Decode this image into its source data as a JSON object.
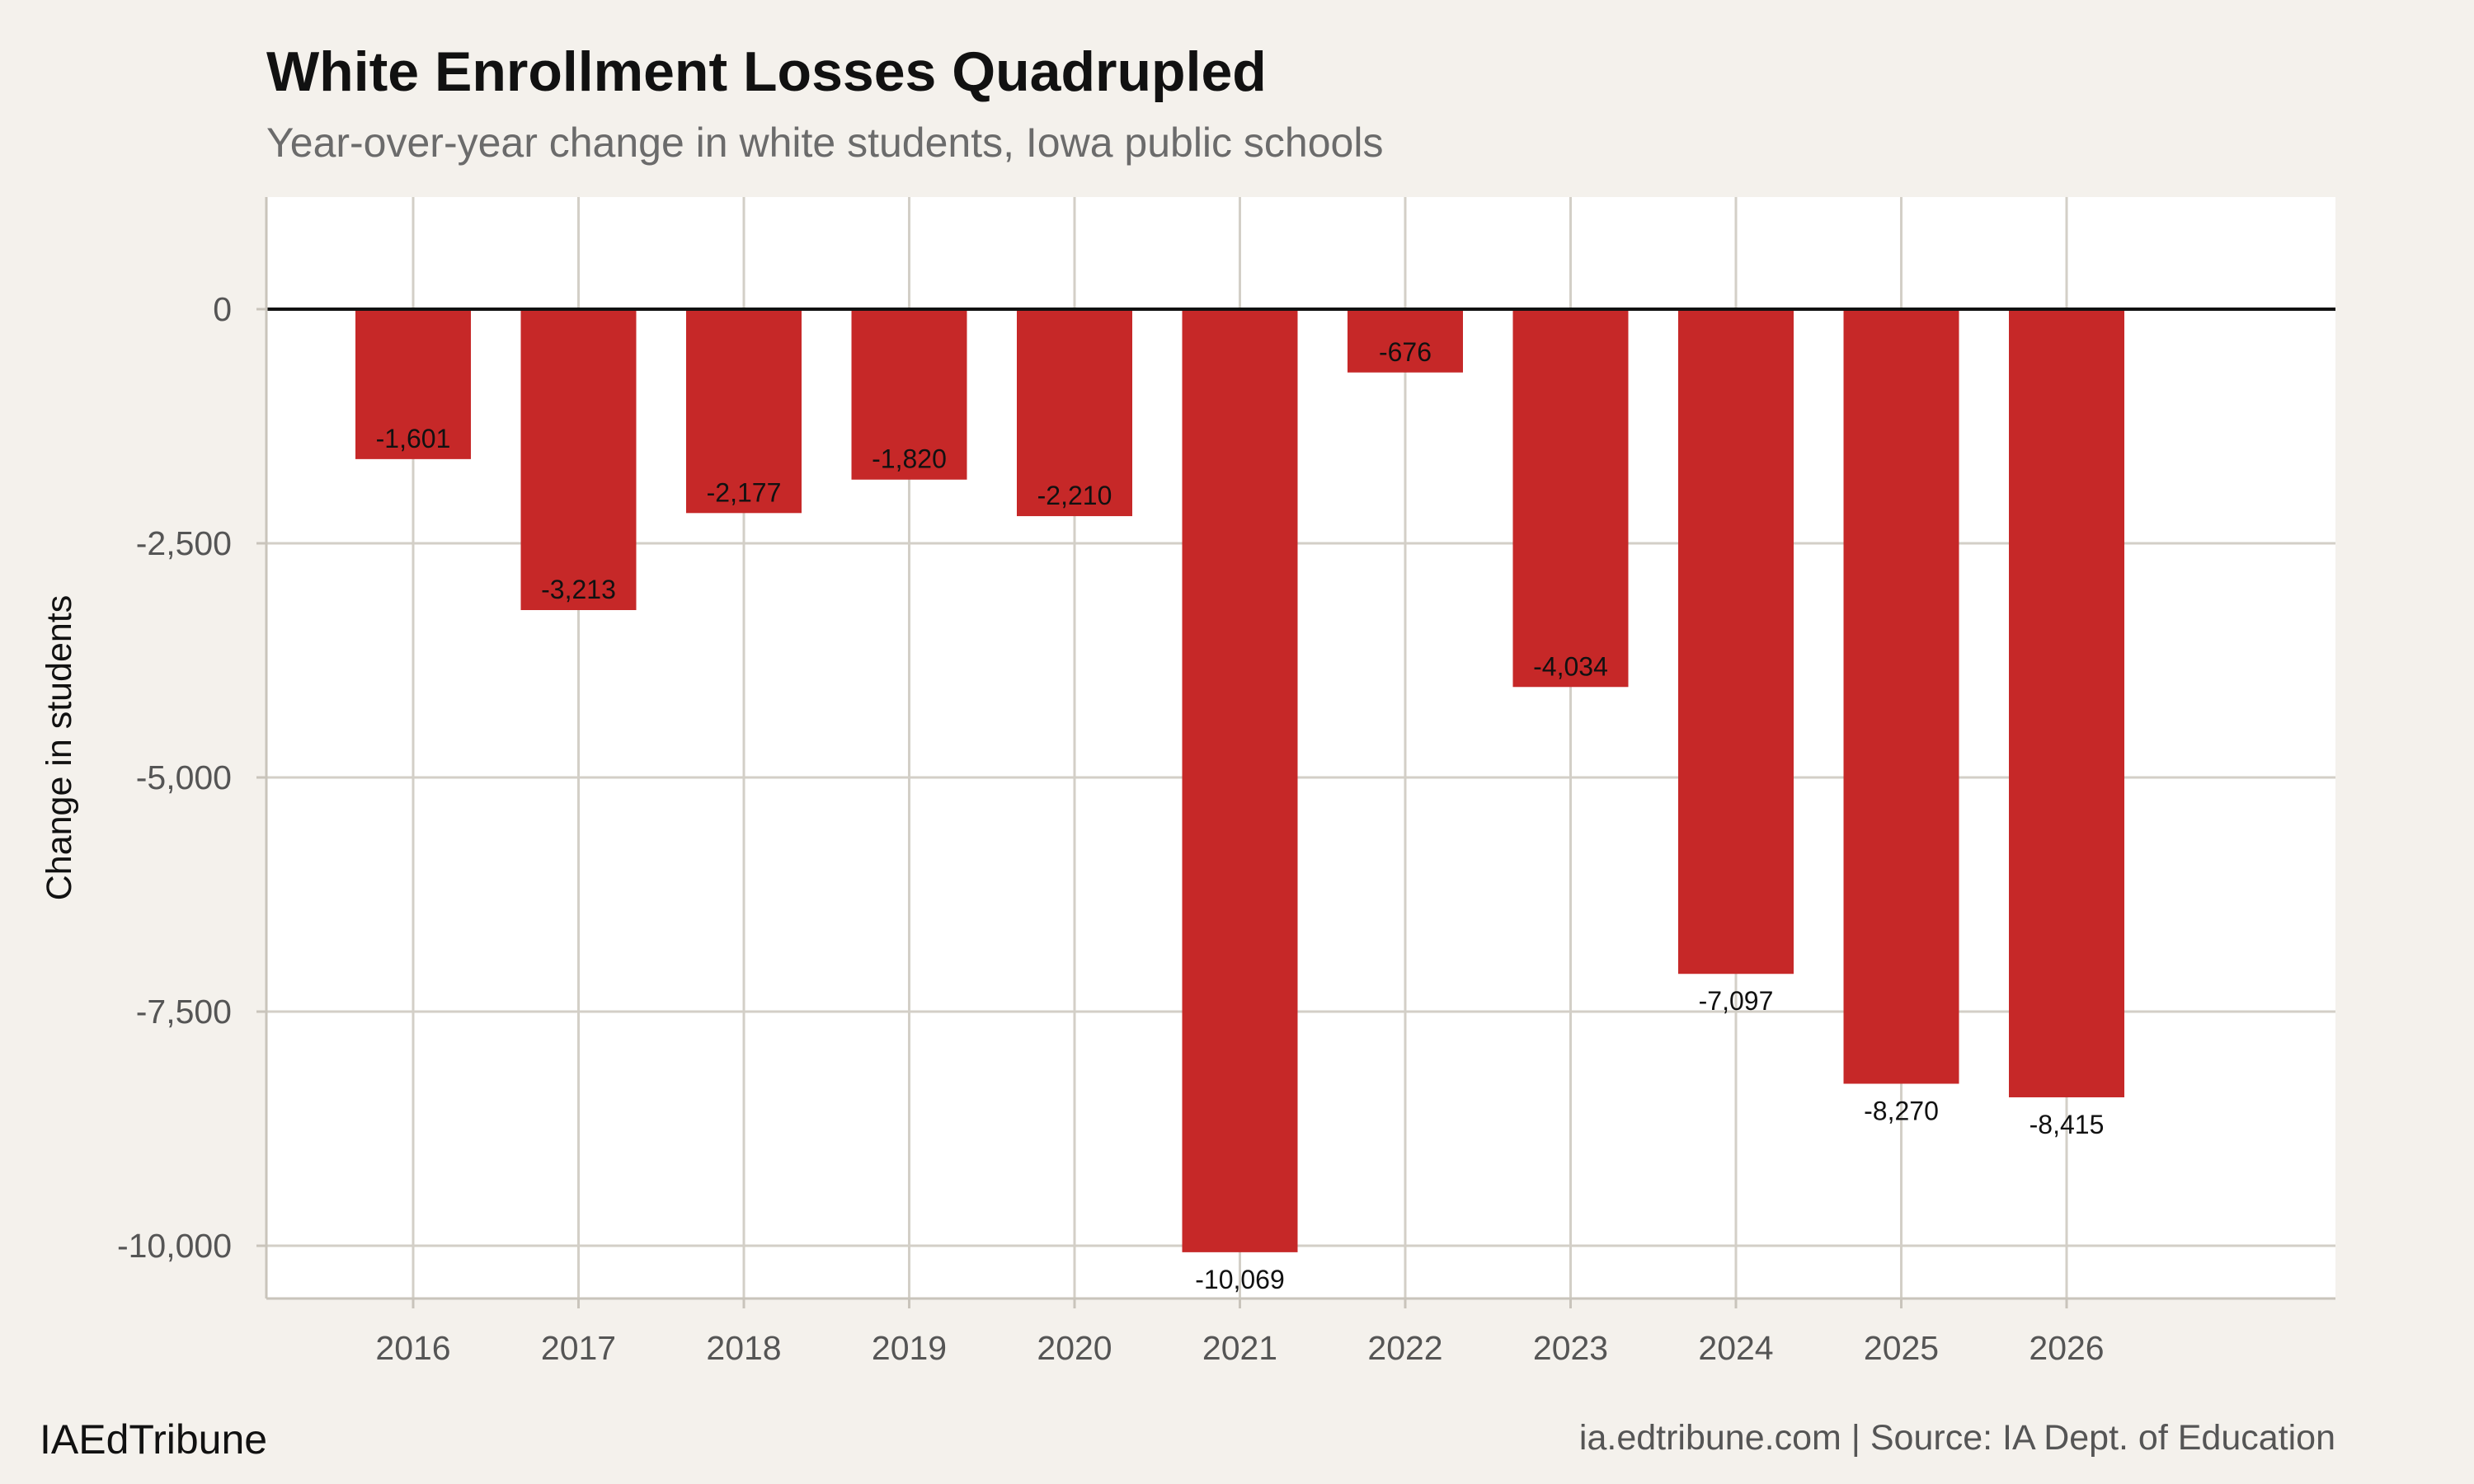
{
  "chart_data": {
    "type": "bar",
    "title": "White Enrollment Losses Quadrupled",
    "subtitle": "Year-over-year change in white students, Iowa public schools",
    "xlabel": "",
    "ylabel": "Change in students",
    "categories": [
      "2016",
      "2017",
      "2018",
      "2019",
      "2020",
      "2021",
      "2022",
      "2023",
      "2024",
      "2025",
      "2026"
    ],
    "values": [
      -1601,
      -3213,
      -2177,
      -1820,
      -2210,
      -10069,
      -676,
      -4034,
      -7097,
      -8270,
      -8415
    ],
    "data_labels": [
      "-1,601",
      "-3,213",
      "-2,177",
      "-1,820",
      "-2,210",
      "-10,069",
      "-676",
      "-4,034",
      "-7,097",
      "-8,270",
      "-8,415"
    ],
    "ylim": [
      -10563,
      1197
    ],
    "yticks": [
      0,
      -2500,
      -5000,
      -7500,
      -10000
    ],
    "ytick_labels": [
      "0",
      "-2,500",
      "-5,000",
      "-7,500",
      "-10,000"
    ],
    "grid": true,
    "bar_color": "#c62828",
    "zero_line_color": "#111111",
    "panel_background": "#ffffff",
    "page_background": "#f4f1ec"
  },
  "footer": {
    "brand": "IAEdTribune",
    "source": "ia.edtribune.com | Source: IA Dept. of Education"
  }
}
